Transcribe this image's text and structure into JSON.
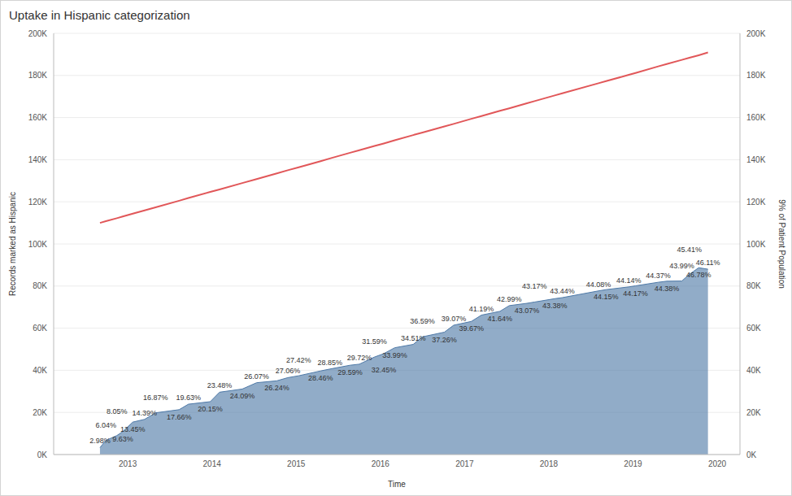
{
  "chart_data": {
    "type": "area",
    "title": "Uptake in Hispanic categorization",
    "x_label": "Time",
    "y_label": "Records marked as Hispanic",
    "y2_label": "9% of Patient Population",
    "x": [
      2012.67,
      2012.74,
      2012.87,
      2012.94,
      2013.06,
      2013.2,
      2013.33,
      2013.61,
      2013.72,
      2013.98,
      2014.09,
      2014.36,
      2014.53,
      2014.77,
      2014.9,
      2015.03,
      2015.29,
      2015.4,
      2015.64,
      2015.75,
      2015.93,
      2016.04,
      2016.17,
      2016.39,
      2016.5,
      2016.76,
      2016.87,
      2017.08,
      2017.2,
      2017.42,
      2017.53,
      2017.74,
      2017.83,
      2018.07,
      2018.16,
      2018.59,
      2018.68,
      2018.95,
      2019.03,
      2019.3,
      2019.4,
      2019.58,
      2019.67,
      2019.78,
      2019.89
    ],
    "xlim": [
      2012.12,
      2020.27
    ],
    "xticks": [
      2013,
      2014,
      2015,
      2016,
      2017,
      2018,
      2019,
      2020
    ],
    "ylim": [
      0,
      200000
    ],
    "yticks": [
      {
        "value": 0,
        "label": "0K"
      },
      {
        "value": 20000,
        "label": "20K"
      },
      {
        "value": 40000,
        "label": "40K"
      },
      {
        "value": 60000,
        "label": "60K"
      },
      {
        "value": 80000,
        "label": "80K"
      },
      {
        "value": 100000,
        "label": "100K"
      },
      {
        "value": 120000,
        "label": "120K"
      },
      {
        "value": 140000,
        "label": "140K"
      },
      {
        "value": 160000,
        "label": "160K"
      },
      {
        "value": 180000,
        "label": "180K"
      },
      {
        "value": 200000,
        "label": "200K"
      }
    ],
    "y2lim": [
      0,
      200000
    ],
    "y2ticks": [
      {
        "value": 0,
        "label": "0K"
      },
      {
        "value": 20000,
        "label": "20K"
      },
      {
        "value": 40000,
        "label": "40K"
      },
      {
        "value": 60000,
        "label": "60K"
      },
      {
        "value": 80000,
        "label": "80K"
      },
      {
        "value": 100000,
        "label": "100K"
      },
      {
        "value": 120000,
        "label": "120K"
      },
      {
        "value": 140000,
        "label": "140K"
      },
      {
        "value": 160000,
        "label": "160K"
      },
      {
        "value": 180000,
        "label": "180K"
      },
      {
        "value": 200000,
        "label": "200K"
      }
    ],
    "grid": true,
    "series": [
      {
        "type": "area",
        "color": "#4e79a7",
        "values": [
          3300,
          6700,
          9000,
          10900,
          15400,
          16700,
          19800,
          21300,
          23900,
          25100,
          29600,
          31100,
          34100,
          35000,
          36500,
          37400,
          39700,
          40600,
          42400,
          42900,
          46300,
          47900,
          50700,
          52300,
          55900,
          58100,
          61400,
          63200,
          66200,
          68000,
          70700,
          71800,
          72400,
          74000,
          74500,
          77700,
          78300,
          79600,
          80100,
          81800,
          82300,
          82400,
          85600,
          88700,
          88000
        ],
        "percent_labels": [
          "2.98%",
          "6.04%",
          "8.05%",
          "9.63%",
          "13.45%",
          "14.39%",
          "16.87%",
          "17.66%",
          "19.63%",
          "20.15%",
          "23.48%",
          "24.09%",
          "26.07%",
          "26.24%",
          "27.06%",
          "27.42%",
          "28.46%",
          "28.85%",
          "29.59%",
          "29.72%",
          "31.59%",
          "32.45%",
          "33.99%",
          "34.51%",
          "36.59%",
          "37.26%",
          "39.07%",
          "39.67%",
          "41.19%",
          "41.64%",
          "42.99%",
          "43.07%",
          "43.17%",
          "43.38%",
          "43.44%",
          "44.08%",
          "44.15%",
          "44.14%",
          "44.17%",
          "44.37%",
          "44.38%",
          "43.99%",
          "45.41%",
          "46.78%",
          "46.11%"
        ]
      },
      {
        "type": "line",
        "color": "#e15759",
        "axis": "y2",
        "values": [
          110000,
          110800,
          112200,
          113000,
          114400,
          115900,
          117400,
          120500,
          121800,
          124700,
          125900,
          128900,
          130800,
          133500,
          135000,
          136400,
          139300,
          140600,
          143300,
          144500,
          146500,
          147700,
          149200,
          151700,
          152900,
          155800,
          157000,
          159400,
          160700,
          163200,
          164400,
          166800,
          167800,
          170500,
          171500,
          176300,
          177300,
          180300,
          181200,
          184300,
          185400,
          187400,
          188400,
          189600,
          190900
        ]
      }
    ]
  }
}
